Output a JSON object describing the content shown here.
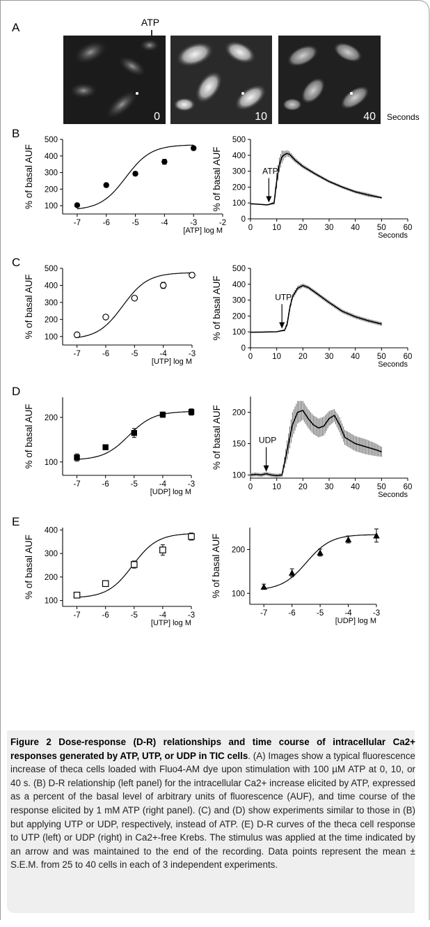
{
  "figure": {
    "panel_a": {
      "letter": "A",
      "arrow_label": "ATP",
      "image_times": [
        "0",
        "10",
        "40"
      ],
      "unit_label": "Seconds"
    },
    "ylabel": "% of basal AUF"
  },
  "chart_data": [
    {
      "id": "B-left",
      "panel": "B",
      "type": "scatter",
      "fit": "sigmoid",
      "marker": "filled-circle",
      "xlabel": "[ATP] log M",
      "ylabel": "% of basal AUF",
      "xlim": [
        -7.5,
        -2
      ],
      "ylim": [
        50,
        500
      ],
      "xticks": [
        -7,
        -6,
        -5,
        -4,
        -3,
        -2
      ],
      "yticks": [
        100,
        200,
        300,
        400,
        500
      ],
      "x": [
        -7,
        -6,
        -5,
        -4,
        -3
      ],
      "y": [
        103,
        224,
        293,
        365,
        447
      ],
      "err": [
        4,
        12,
        12,
        15,
        12
      ]
    },
    {
      "id": "B-right",
      "panel": "B",
      "type": "line",
      "xlabel": "Seconds",
      "ylabel": "% of basal AUF",
      "xlim": [
        0,
        60
      ],
      "ylim": [
        0,
        500
      ],
      "xticks": [
        0,
        10,
        20,
        30,
        40,
        50,
        60
      ],
      "yticks": [
        0,
        100,
        200,
        300,
        400,
        500
      ],
      "annotation": "ATP",
      "annotation_x": 7,
      "x": [
        0,
        3,
        6,
        7,
        8,
        9,
        10,
        11,
        12,
        13,
        14,
        15,
        17,
        20,
        25,
        30,
        35,
        40,
        45,
        50
      ],
      "y": [
        95,
        92,
        88,
        90,
        95,
        100,
        240,
        340,
        390,
        405,
        412,
        405,
        370,
        330,
        280,
        235,
        200,
        170,
        150,
        133
      ],
      "err": [
        3,
        3,
        3,
        4,
        6,
        10,
        50,
        45,
        40,
        22,
        20,
        18,
        15,
        12,
        10,
        9,
        9,
        9,
        12,
        6
      ]
    },
    {
      "id": "C-left",
      "panel": "C",
      "type": "scatter",
      "fit": "sigmoid",
      "marker": "open-circle",
      "xlabel": "[UTP] log M",
      "ylabel": "% of basal AUF",
      "xlim": [
        -7.5,
        -3
      ],
      "ylim": [
        50,
        500
      ],
      "xticks": [
        -7,
        -6,
        -5,
        -4,
        -3
      ],
      "yticks": [
        100,
        200,
        300,
        400,
        500
      ],
      "x": [
        -7,
        -6,
        -5,
        -4,
        -3
      ],
      "y": [
        110,
        214,
        325,
        400,
        460
      ],
      "err": [
        3,
        12,
        10,
        18,
        15
      ]
    },
    {
      "id": "C-right",
      "panel": "C",
      "type": "line",
      "xlabel": "Seconds",
      "ylabel": "% of basal AUF",
      "xlim": [
        0,
        60
      ],
      "ylim": [
        0,
        500
      ],
      "xticks": [
        0,
        10,
        20,
        30,
        40,
        50,
        60
      ],
      "yticks": [
        0,
        100,
        200,
        300,
        400,
        500
      ],
      "annotation": "UTP",
      "annotation_x": 12,
      "x": [
        0,
        5,
        10,
        12,
        13,
        14,
        15,
        16,
        18,
        20,
        22,
        25,
        30,
        35,
        40,
        45,
        50
      ],
      "y": [
        98,
        99,
        101,
        108,
        110,
        150,
        250,
        320,
        375,
        392,
        380,
        345,
        285,
        230,
        195,
        170,
        150
      ],
      "err": [
        2,
        2,
        3,
        5,
        6,
        15,
        20,
        18,
        15,
        12,
        12,
        12,
        12,
        12,
        12,
        12,
        12
      ]
    },
    {
      "id": "D-left",
      "panel": "D",
      "type": "scatter",
      "fit": "sigmoid",
      "marker": "filled-square",
      "xlabel": "[UDP] log M",
      "ylabel": "% of basal AUF",
      "xlim": [
        -7.5,
        -3
      ],
      "ylim": [
        70,
        245
      ],
      "xticks": [
        -7,
        -6,
        -5,
        -4,
        -3
      ],
      "yticks": [
        100,
        200
      ],
      "x": [
        -7,
        -6,
        -5,
        -4,
        -3
      ],
      "y": [
        110,
        133,
        165,
        206,
        212
      ],
      "err": [
        8,
        3,
        10,
        6,
        7
      ]
    },
    {
      "id": "D-right",
      "panel": "D",
      "type": "line",
      "xlabel": "Seconds",
      "ylabel": "% of basal AUF",
      "xlim": [
        0,
        60
      ],
      "ylim": [
        95,
        225
      ],
      "xticks": [
        0,
        10,
        20,
        30,
        40,
        50,
        60
      ],
      "yticks": [
        100,
        150,
        200
      ],
      "annotation": "UDP",
      "annotation_x": 6,
      "x": [
        0,
        2,
        4,
        6,
        8,
        10,
        12,
        14,
        16,
        18,
        20,
        22,
        24,
        26,
        28,
        30,
        32,
        34,
        36,
        38,
        40,
        44,
        48,
        50
      ],
      "y": [
        100,
        101,
        100,
        102,
        100,
        99,
        100,
        140,
        180,
        200,
        203,
        190,
        180,
        175,
        178,
        190,
        195,
        180,
        160,
        155,
        150,
        145,
        140,
        137
      ],
      "err": [
        3,
        3,
        3,
        3,
        3,
        3,
        3,
        15,
        20,
        18,
        15,
        15,
        15,
        15,
        15,
        12,
        10,
        12,
        12,
        12,
        12,
        12,
        10,
        8
      ]
    },
    {
      "id": "E-left",
      "panel": "E",
      "type": "scatter",
      "fit": "sigmoid",
      "marker": "open-square",
      "xlabel": "[UTP] log M",
      "ylabel": "% of basal AUF",
      "xlim": [
        -7.5,
        -3
      ],
      "ylim": [
        75,
        410
      ],
      "xticks": [
        -7,
        -6,
        -5,
        -4,
        -3
      ],
      "yticks": [
        100,
        200,
        300,
        400
      ],
      "x": [
        -7,
        -6,
        -5,
        -4,
        -3
      ],
      "y": [
        123,
        172,
        253,
        315,
        372
      ],
      "err": [
        4,
        12,
        15,
        22,
        15
      ]
    },
    {
      "id": "E-right",
      "panel": "E",
      "type": "scatter",
      "fit": "sigmoid",
      "marker": "filled-triangle",
      "xlabel": "[UDP] log M",
      "ylabel": "% of basal AUF",
      "xlim": [
        -7.5,
        -3
      ],
      "ylim": [
        75,
        250
      ],
      "xticks": [
        -7,
        -6,
        -5,
        -4,
        -3
      ],
      "yticks": [
        100,
        200
      ],
      "x": [
        -7,
        -6,
        -5,
        -4,
        -3
      ],
      "y": [
        115,
        147,
        193,
        223,
        232
      ],
      "err": [
        6,
        9,
        8,
        8,
        15
      ]
    }
  ],
  "caption": {
    "title": "Figure 2 Dose-response (D-R) relationships and time course of intracellular Ca2+ responses generated by ATP, UTP, or UDP in TIC cells",
    "body": ". (A) Images show a typical fluorescence increase of theca cells loaded with Fluo4-AM dye upon stimulation with 100 µM ATP at 0, 10, or 40 s. (B) D-R relationship (left panel) for the intracellular Ca2+ increase elicited by ATP, expressed as a percent of the basal level of arbitrary units of fluorescence (AUF), and time course of the response elicited by 1 mM ATP (right panel). (C) and (D) show experiments similar to those in (B) but applying UTP or UDP, respectively, instead of ATP. (E) D-R curves of the theca cell response to UTP (left) or UDP (right) in Ca2+-free Krebs. The stimulus was applied at the time indicated by an arrow and was maintained to the end of the recording. Data points represent the mean ± S.E.M. from 25 to 40 cells in each of 3 independent experiments."
  }
}
